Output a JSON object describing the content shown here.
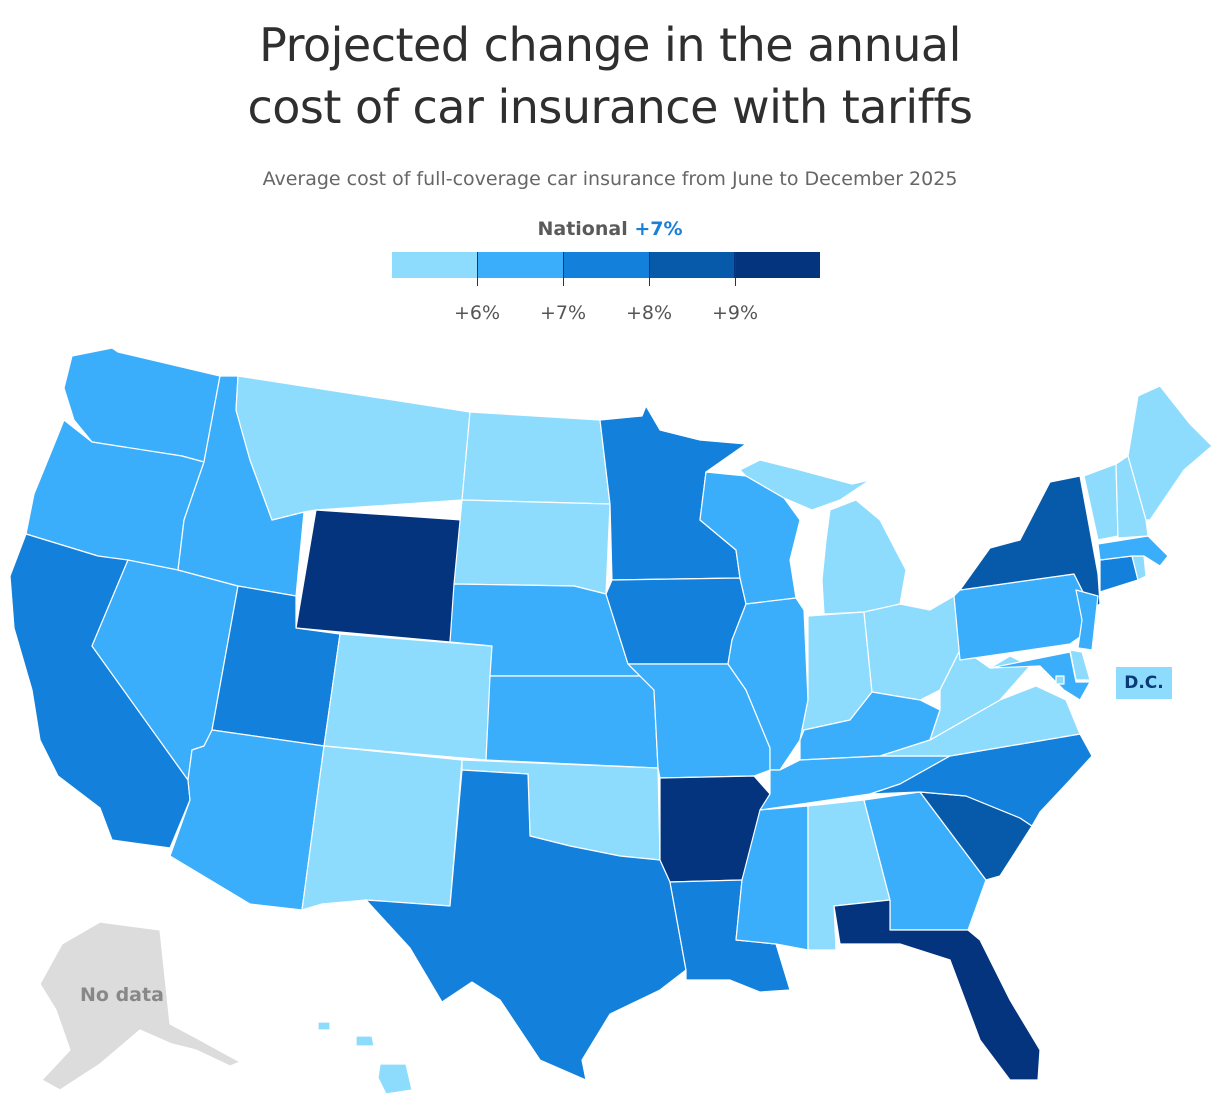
{
  "title_line1": "Projected change in the annual",
  "title_line2": "cost of car insurance with tariffs",
  "subtitle": "Average cost of full-coverage car insurance from June to December 2025",
  "national": {
    "label": "National",
    "value": "+7%"
  },
  "legend": {
    "bins": [
      {
        "color": "#8ddcfe",
        "range": "below +6%"
      },
      {
        "color": "#3aaefb",
        "range": "+6% to +7%"
      },
      {
        "color": "#1380dc",
        "range": "+7% to +8%"
      },
      {
        "color": "#075aaa",
        "range": "+8% to +9%"
      },
      {
        "color": "#04347e",
        "range": "+9% and above"
      }
    ],
    "tick_labels": [
      "+6%",
      "+7%",
      "+8%",
      "+9%"
    ]
  },
  "no_data_color": "#dcdcdc",
  "no_data_label": "No data",
  "dc": {
    "label": "D.C.",
    "bin": 0
  },
  "state_bins": {
    "WA": 1,
    "OR": 1,
    "CA": 2,
    "NV": 1,
    "ID": 1,
    "MT": 0,
    "WY": 4,
    "UT": 2,
    "AZ": 1,
    "CO": 0,
    "NM": 0,
    "ND": 0,
    "SD": 0,
    "NE": 1,
    "KS": 1,
    "OK": 0,
    "TX": 2,
    "MN": 2,
    "IA": 2,
    "MO": 1,
    "AR": 4,
    "LA": 2,
    "WI": 1,
    "IL": 1,
    "MI": 0,
    "IN": 0,
    "OH": 0,
    "KY": 1,
    "TN": 1,
    "MS": 1,
    "AL": 0,
    "GA": 1,
    "FL": 4,
    "SC": 3,
    "NC": 2,
    "VA": 0,
    "WV": 0,
    "PA": 1,
    "NY": 3,
    "NJ": 1,
    "DE": 0,
    "MD": 1,
    "CT": 2,
    "RI": 0,
    "MA": 1,
    "VT": 0,
    "NH": 0,
    "ME": 0,
    "HI": 0,
    "AK": "no-data"
  }
}
